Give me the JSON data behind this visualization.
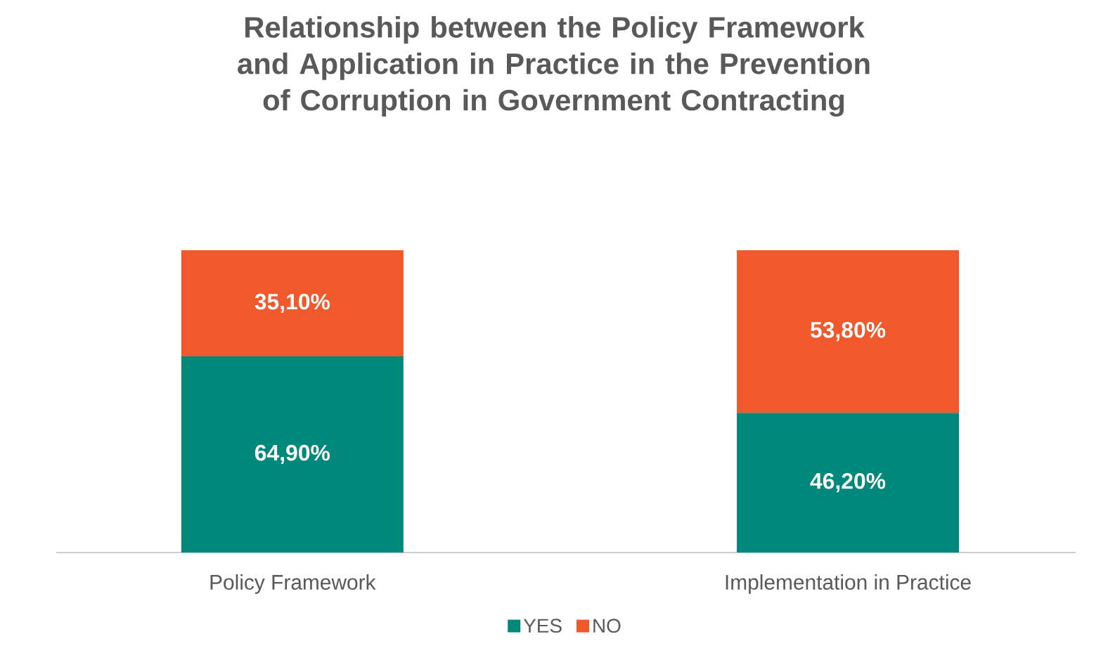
{
  "chart_data": {
    "type": "bar",
    "stacked": true,
    "title": "Relationship between the Policy Framework and Application in Practice in the Prevention of Corruption in Government Contracting",
    "categories": [
      "Policy Framework",
      "Implementation in Practice"
    ],
    "series": [
      {
        "name": "YES",
        "color": "#00897b",
        "values": [
          64.9,
          46.2
        ],
        "value_labels": [
          "64,90%",
          "46,20%"
        ]
      },
      {
        "name": "NO",
        "color": "#f0592b",
        "values": [
          35.1,
          53.8
        ],
        "value_labels": [
          "35,10%",
          "53,80%"
        ]
      }
    ],
    "tick_labels": "x",
    "legend": "bottom"
  }
}
